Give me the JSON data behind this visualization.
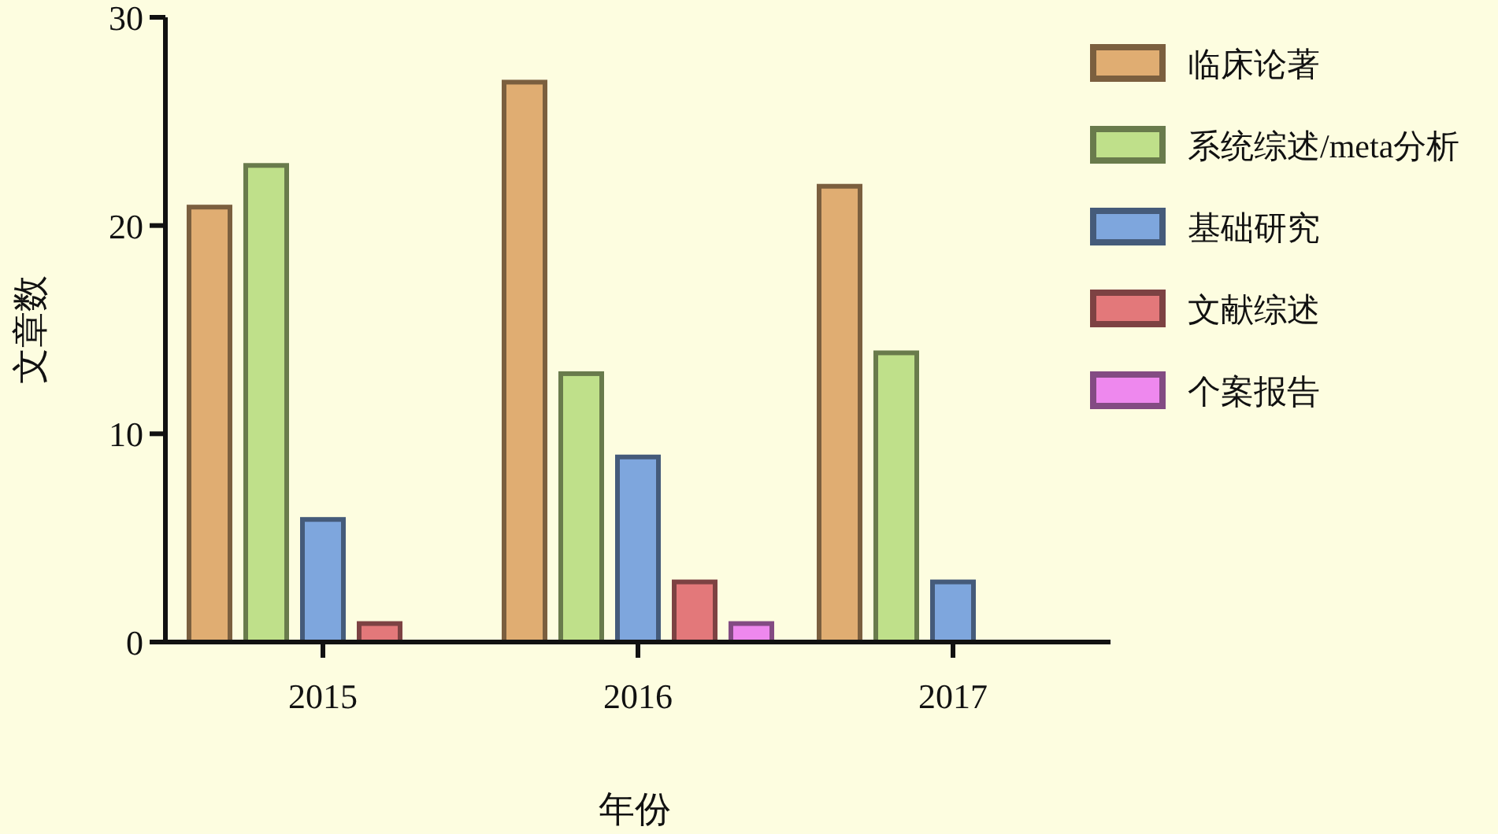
{
  "chart_data": {
    "type": "bar",
    "xlabel": "年份",
    "ylabel": "文章数",
    "categories": [
      "2015",
      "2016",
      "2017"
    ],
    "series": [
      {
        "name": "临床论著",
        "color": "#e0ad72",
        "values": [
          21,
          27,
          22
        ]
      },
      {
        "name": "系统综述/meta分析",
        "color": "#bfe08a",
        "values": [
          23,
          13,
          14
        ]
      },
      {
        "name": "基础研究",
        "color": "#7ea6dd",
        "values": [
          6,
          9,
          3
        ]
      },
      {
        "name": "文献综述",
        "color": "#e3787a",
        "values": [
          1,
          3,
          null
        ]
      },
      {
        "name": "个案报告",
        "color": "#ee88ee",
        "values": [
          null,
          1,
          null
        ]
      }
    ],
    "ylim": [
      0,
      30
    ],
    "yticks": [
      0,
      10,
      20,
      30
    ],
    "grid": false,
    "legend": "right"
  }
}
